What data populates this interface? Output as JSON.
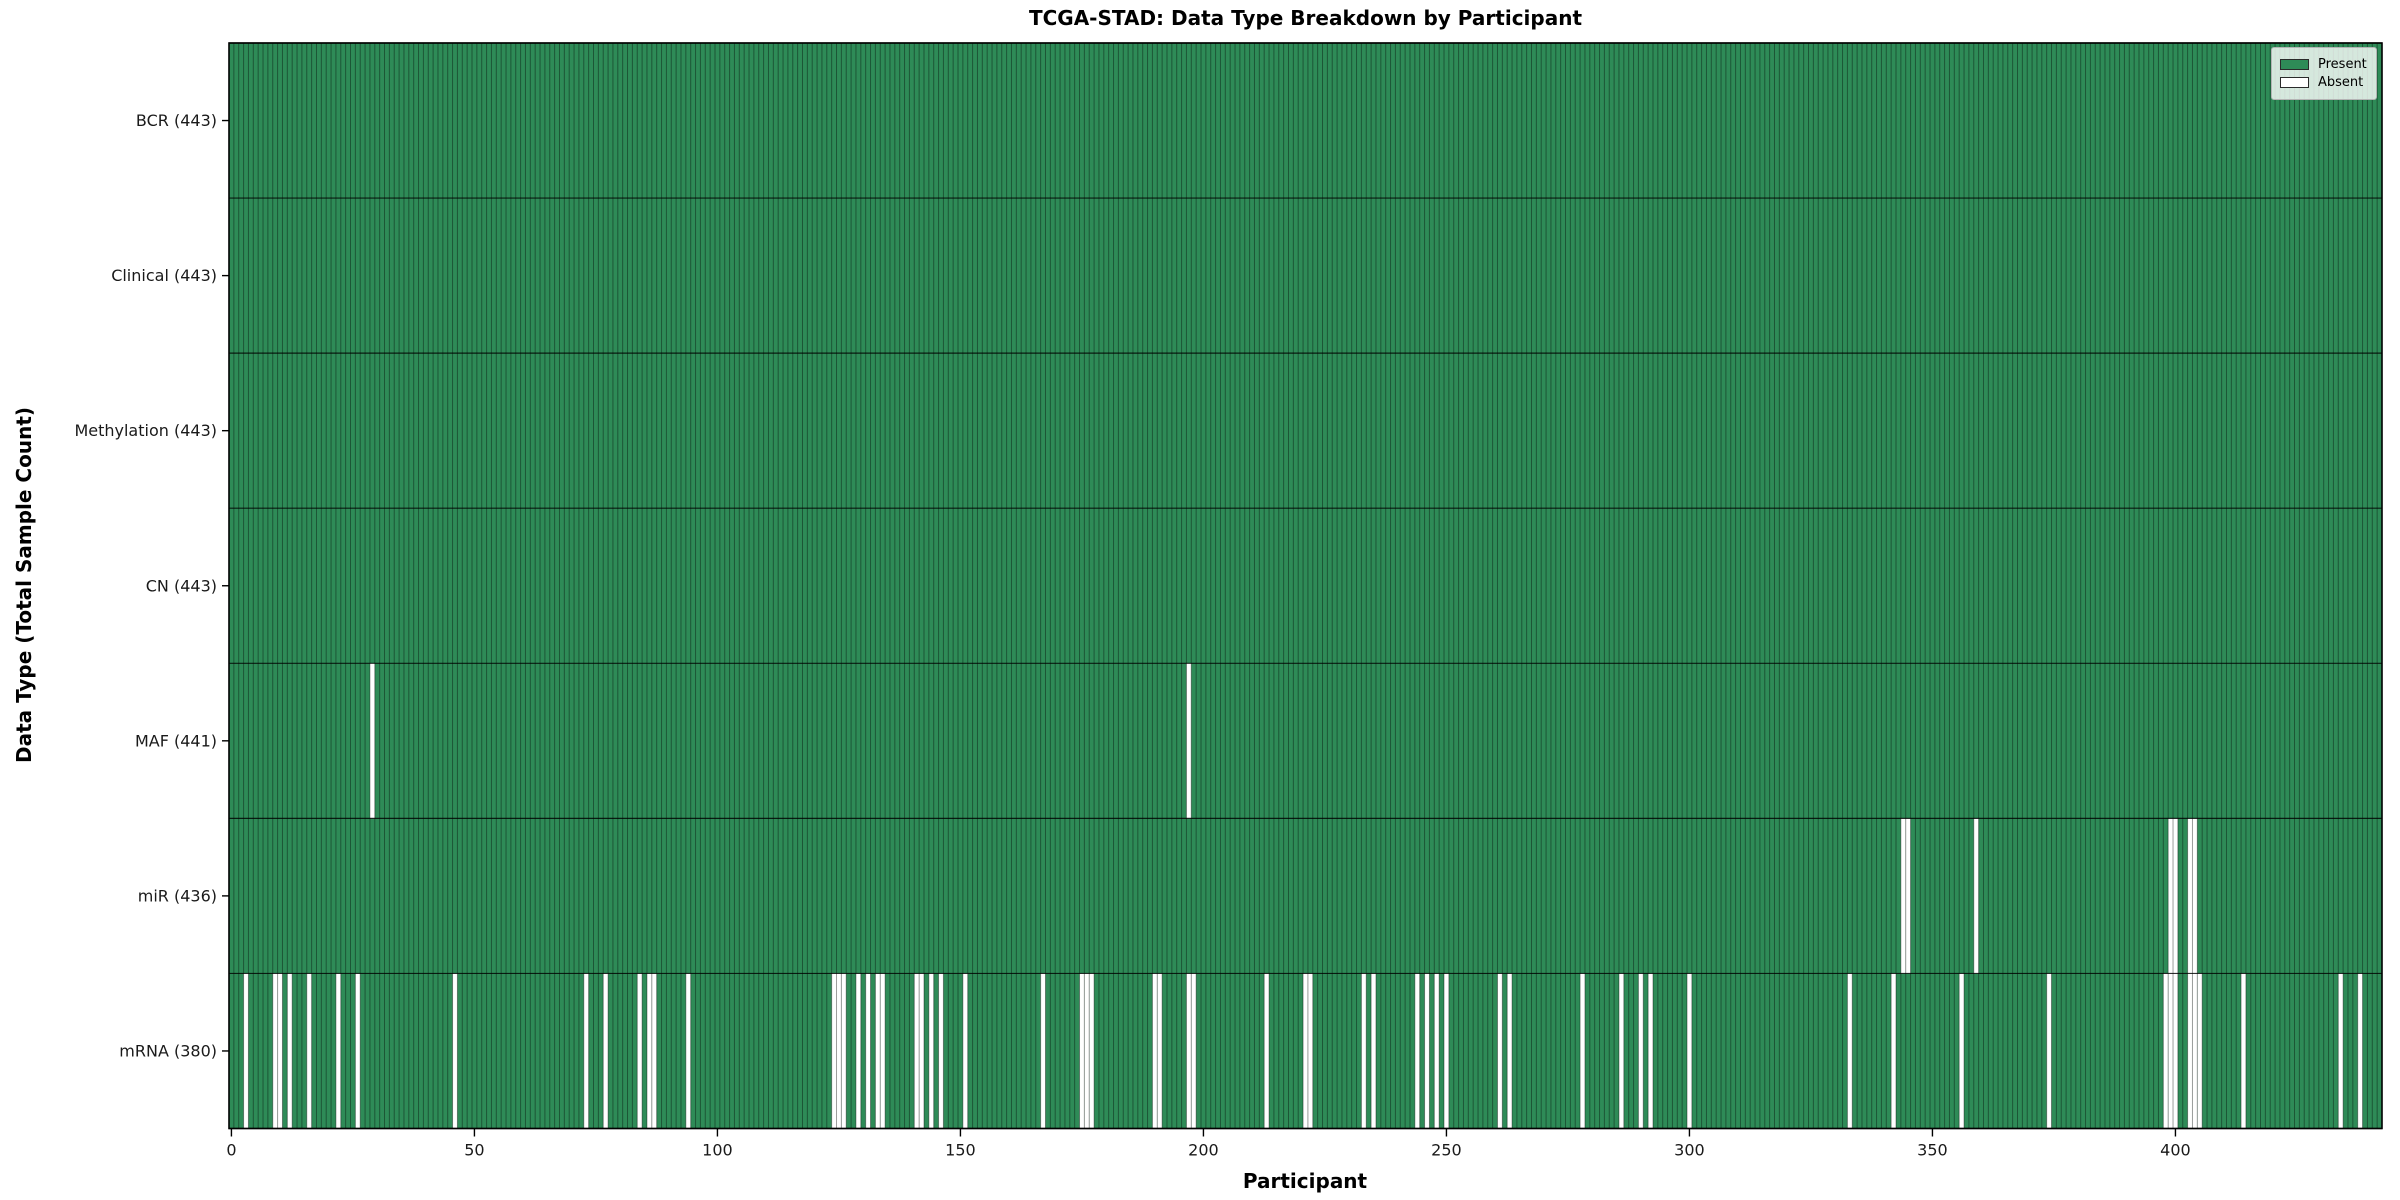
{
  "chart_data": {
    "type": "heatmap",
    "title": "TCGA-STAD: Data Type Breakdown by Participant",
    "xlabel": "Participant",
    "ylabel": "Data Type (Total Sample Count)",
    "n_participants": 443,
    "x_ticks": [
      0,
      50,
      100,
      150,
      200,
      250,
      300,
      350,
      400
    ],
    "cell_states": [
      "Present",
      "Absent"
    ],
    "legend": {
      "position": "upper-right",
      "items": [
        {
          "label": "Present",
          "color": "#2E8B57"
        },
        {
          "label": "Absent",
          "color": "#FFFFFF"
        }
      ]
    },
    "colors": {
      "present": "#2E8B57",
      "absent": "#FFFFFF",
      "bar_edge": "rgba(0,0,0,0.38)",
      "row_divider": "rgba(0,0,0,0.8)",
      "plot_border": "#000000"
    },
    "rows": [
      {
        "label": "BCR (443)",
        "data_type": "BCR",
        "present_count": 443,
        "absent_participants": []
      },
      {
        "label": "Clinical (443)",
        "data_type": "Clinical",
        "present_count": 443,
        "absent_participants": []
      },
      {
        "label": "Methylation (443)",
        "data_type": "Methylation",
        "present_count": 443,
        "absent_participants": []
      },
      {
        "label": "CN (443)",
        "data_type": "CN",
        "present_count": 443,
        "absent_participants": []
      },
      {
        "label": "MAF (441)",
        "data_type": "MAF",
        "present_count": 441,
        "absent_participants": [
          29,
          197
        ]
      },
      {
        "label": "miR (436)",
        "data_type": "miR",
        "present_count": 436,
        "absent_participants": [
          344,
          345,
          359,
          399,
          400,
          403,
          404
        ]
      },
      {
        "label": "mRNA (380)",
        "data_type": "mRNA",
        "present_count": 380,
        "absent_participants": [
          3,
          9,
          10,
          12,
          16,
          22,
          26,
          46,
          73,
          77,
          84,
          86,
          87,
          94,
          124,
          125,
          126,
          129,
          131,
          133,
          134,
          141,
          142,
          144,
          146,
          151,
          167,
          175,
          176,
          177,
          190,
          191,
          197,
          198,
          213,
          221,
          222,
          233,
          235,
          244,
          246,
          248,
          250,
          261,
          263,
          278,
          286,
          290,
          292,
          300,
          333,
          342,
          356,
          374,
          398,
          399,
          400,
          403,
          404,
          405,
          414,
          434,
          438
        ]
      }
    ]
  }
}
